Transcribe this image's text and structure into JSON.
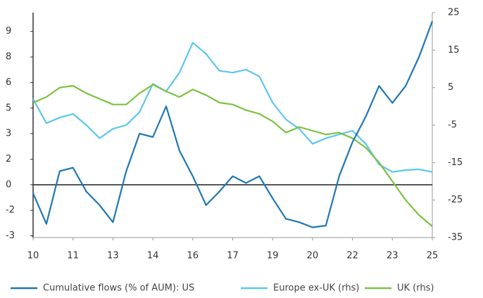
{
  "chart_data": {
    "type": "line",
    "x": [
      10,
      10.5,
      11,
      11.5,
      12,
      12.5,
      13,
      13.5,
      14,
      14.5,
      15,
      15.5,
      16,
      16.5,
      17,
      17.5,
      18,
      18.5,
      19,
      19.5,
      20,
      20.5,
      21,
      21.5,
      22,
      22.5,
      23,
      23.5,
      24,
      24.5,
      25
    ],
    "series": [
      {
        "name": "Cumulative flows (% of AUM): US",
        "color": "#1f77b4",
        "values": [
          -0.5,
          -2.3,
          0.8,
          1.0,
          -0.4,
          -1.2,
          -2.2,
          0.8,
          3.0,
          2.8,
          4.6,
          2.0,
          0.5,
          -1.2,
          -0.4,
          0.5,
          0.1,
          0.5,
          -0.8,
          -2.0,
          -2.2,
          -2.5,
          -2.4,
          0.5,
          2.5,
          4.0,
          5.8,
          4.8,
          5.8,
          7.5,
          9.6
        ]
      },
      {
        "name": "Europe ex-UK (rhs)",
        "color": "#5cc6f0",
        "axis": "y2",
        "values": [
          2,
          -4.5,
          -3,
          -2,
          -5,
          -8.5,
          -6,
          -5,
          -1.5,
          6,
          4,
          9,
          17,
          14,
          9.5,
          9,
          9.8,
          8,
          1,
          -3.5,
          -6,
          -10,
          -8.5,
          -7.5,
          -6.5,
          -10,
          -15.5,
          -17.5,
          -17,
          -16.8,
          -17.5
        ]
      },
      {
        "name": "UK (rhs)",
        "color": "#7dc242",
        "axis": "y2",
        "values": [
          1,
          2.5,
          5,
          5.5,
          3.5,
          2,
          0.5,
          0.5,
          3.5,
          5.8,
          4,
          2.5,
          4.5,
          3,
          1,
          0.5,
          -1,
          -2,
          -4,
          -7,
          -5.5,
          -6.5,
          -7.5,
          -7,
          -8.5,
          -11,
          -15,
          -20,
          -25,
          -29,
          -32
        ]
      }
    ],
    "xlim": [
      10,
      25
    ],
    "xticks": [
      10,
      {
        "value": 11.5,
        "label": "11"
      },
      13,
      {
        "value": 14.5,
        "label": "14"
      },
      16,
      {
        "value": 17.5,
        "label": "17"
      },
      19,
      {
        "value": 20.5,
        "label": "20"
      },
      22,
      {
        "value": 23.5,
        "label": "23"
      },
      25
    ],
    "ylim": [
      -3.1,
      10.1
    ],
    "yticks": [
      -3,
      {
        "value": -1.5,
        "label": "-2"
      },
      0,
      {
        "value": 1.5,
        "label": "2"
      },
      3,
      {
        "value": 4.5,
        "label": "5"
      },
      6,
      {
        "value": 7.5,
        "label": "8"
      },
      9
    ],
    "y2lim": [
      -35,
      25
    ],
    "y2ticks": [
      -35,
      -25,
      -15,
      -5,
      5,
      15,
      25
    ],
    "grid": false,
    "legend": "bottom"
  }
}
